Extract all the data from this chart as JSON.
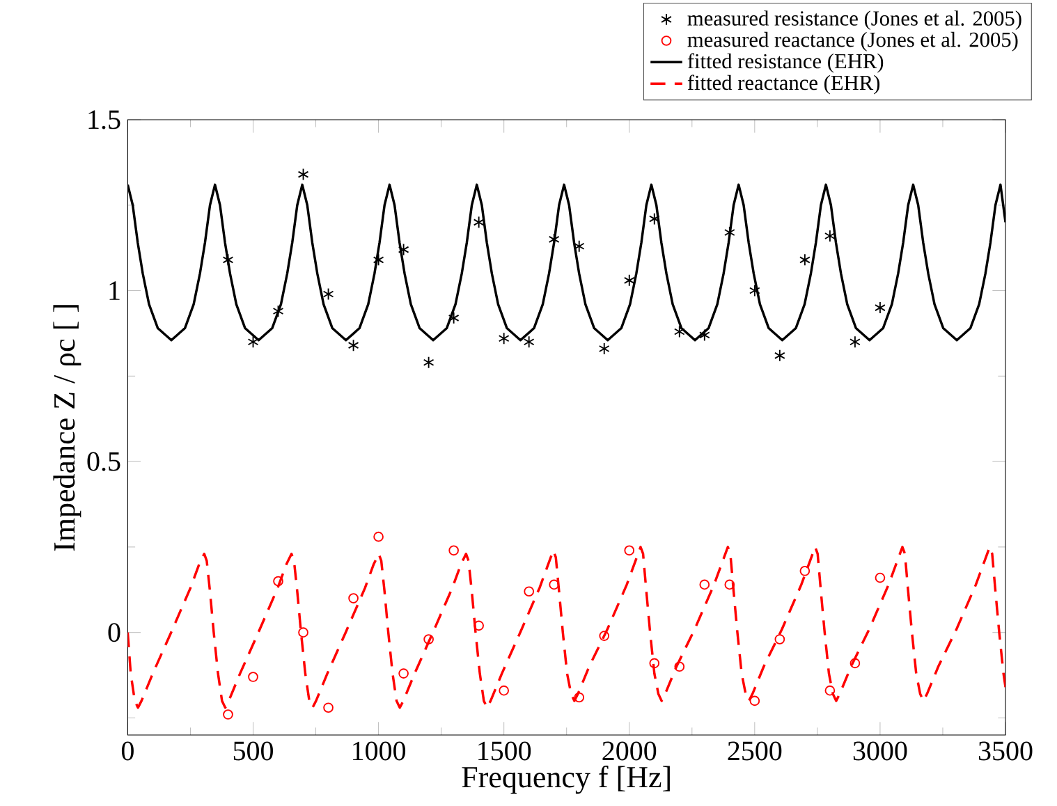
{
  "chart_data": {
    "type": "line",
    "xlabel": "Frequency f [Hz]",
    "ylabel": "Impedance Z / ρc [ ]",
    "xlim": [
      0,
      3500
    ],
    "ylim": [
      -0.3,
      1.5
    ],
    "xticks": [
      0,
      {
        "value": 250,
        "label": null
      },
      500,
      {
        "value": 750,
        "label": null
      },
      1000,
      {
        "value": 1250,
        "label": null
      },
      1500,
      {
        "value": 1750,
        "label": null
      },
      2000,
      {
        "value": 2250,
        "label": null
      },
      2500,
      {
        "value": 2750,
        "label": null
      },
      3000,
      {
        "value": 3250,
        "label": null
      },
      3500
    ],
    "yticks": [
      {
        "value": -0.25,
        "label": null
      },
      0,
      {
        "value": 0.25,
        "label": null
      },
      0.5,
      {
        "value": 0.75,
        "label": null
      },
      1,
      {
        "value": 1.25,
        "label": null
      },
      1.5
    ],
    "grid": false,
    "legend": "top right",
    "series": [
      {
        "name": "measured resistance (Jones et al. 2005)",
        "type": "scatter",
        "color": "#000000",
        "x": [
          400,
          500,
          600,
          700,
          800,
          900,
          1000,
          1100,
          1200,
          1300,
          1400,
          1500,
          1600,
          1700,
          1800,
          1900,
          2000,
          2100,
          2200,
          2300,
          2400,
          2500,
          2600,
          2700,
          2800,
          2900,
          3000
        ],
        "values": [
          1.09,
          0.85,
          0.94,
          1.34,
          0.99,
          0.84,
          1.09,
          1.12,
          0.79,
          0.92,
          1.2,
          0.86,
          0.85,
          1.15,
          1.13,
          0.83,
          1.03,
          1.21,
          0.88,
          0.87,
          1.17,
          1.0,
          0.81,
          1.09,
          1.16,
          0.85,
          0.95
        ]
      },
      {
        "name": "measured reactance (Jones et al. 2005)",
        "type": "scatter",
        "marker": "circle",
        "color": "#ff0000",
        "x": [
          400,
          500,
          600,
          700,
          800,
          900,
          1000,
          1100,
          1200,
          1300,
          1400,
          1500,
          1600,
          1700,
          1800,
          1900,
          2000,
          2100,
          2200,
          2300,
          2400,
          2500,
          2600,
          2700,
          2800,
          2900,
          3000
        ],
        "values": [
          -0.24,
          -0.13,
          0.15,
          0.0,
          -0.22,
          0.1,
          0.28,
          -0.12,
          -0.02,
          0.24,
          0.02,
          -0.17,
          0.12,
          0.14,
          -0.19,
          -0.01,
          0.24,
          -0.09,
          -0.1,
          0.14,
          0.14,
          -0.2,
          -0.02,
          0.18,
          -0.17,
          -0.09,
          0.16
        ]
      },
      {
        "name": "fitted resistance (EHR)",
        "marker": "none",
        "line_style": "solid",
        "color": "#000000",
        "x": [
          0,
          20,
          40,
          60,
          85,
          120,
          174,
          228,
          263,
          288,
          308,
          328,
          348,
          368,
          388,
          408,
          433,
          468,
          522,
          576,
          611,
          636,
          656,
          676,
          696,
          716,
          736,
          756,
          781,
          816,
          870,
          924,
          959,
          984,
          1004,
          1024,
          1044,
          1064,
          1084,
          1104,
          1129,
          1164,
          1218,
          1272,
          1307,
          1332,
          1352,
          1372,
          1392,
          1412,
          1432,
          1452,
          1477,
          1512,
          1566,
          1620,
          1655,
          1680,
          1700,
          1720,
          1740,
          1760,
          1780,
          1800,
          1825,
          1860,
          1914,
          1968,
          2003,
          2028,
          2048,
          2068,
          2088,
          2108,
          2128,
          2148,
          2173,
          2208,
          2262,
          2316,
          2351,
          2376,
          2396,
          2416,
          2436,
          2456,
          2476,
          2496,
          2521,
          2556,
          2610,
          2664,
          2699,
          2724,
          2744,
          2764,
          2784,
          2804,
          2824,
          2844,
          2869,
          2904,
          2958,
          3012,
          3047,
          3072,
          3092,
          3112,
          3132,
          3152,
          3172,
          3192,
          3217,
          3252,
          3306,
          3360,
          3395,
          3420,
          3440,
          3460,
          3480,
          3500
        ],
        "values": [
          1.31,
          1.25,
          1.14,
          1.05,
          0.96,
          0.89,
          0.855,
          0.89,
          0.96,
          1.05,
          1.14,
          1.25,
          1.31,
          1.25,
          1.14,
          1.05,
          0.96,
          0.89,
          0.855,
          0.89,
          0.96,
          1.05,
          1.14,
          1.25,
          1.31,
          1.25,
          1.14,
          1.05,
          0.96,
          0.89,
          0.855,
          0.89,
          0.96,
          1.05,
          1.14,
          1.25,
          1.31,
          1.25,
          1.14,
          1.05,
          0.96,
          0.89,
          0.855,
          0.89,
          0.96,
          1.05,
          1.14,
          1.25,
          1.31,
          1.25,
          1.14,
          1.05,
          0.96,
          0.89,
          0.855,
          0.89,
          0.96,
          1.05,
          1.14,
          1.25,
          1.31,
          1.25,
          1.14,
          1.05,
          0.96,
          0.89,
          0.855,
          0.89,
          0.96,
          1.05,
          1.14,
          1.25,
          1.31,
          1.25,
          1.14,
          1.05,
          0.96,
          0.89,
          0.855,
          0.89,
          0.96,
          1.05,
          1.14,
          1.25,
          1.31,
          1.25,
          1.14,
          1.05,
          0.96,
          0.89,
          0.855,
          0.89,
          0.96,
          1.05,
          1.14,
          1.25,
          1.31,
          1.25,
          1.14,
          1.05,
          0.96,
          0.89,
          0.855,
          0.89,
          0.96,
          1.05,
          1.14,
          1.25,
          1.31,
          1.25,
          1.14,
          1.05,
          0.96,
          0.89,
          0.855,
          0.89,
          0.96,
          1.05,
          1.14,
          1.25,
          1.31,
          1.2
        ]
      },
      {
        "name": "fitted reactance (EHR)",
        "marker": "none",
        "line_style": "dashed",
        "color": "#ff0000",
        "x": [
          0,
          12,
          28,
          41,
          55,
          100,
          173,
          250,
          285,
          305,
          315,
          328,
          343,
          360,
          376,
          389,
          403,
          448,
          521,
          598,
          633,
          653,
          663,
          676,
          691,
          708,
          724,
          737,
          751,
          796,
          869,
          946,
          981,
          1001,
          1011,
          1024,
          1039,
          1056,
          1072,
          1085,
          1099,
          1144,
          1217,
          1294,
          1329,
          1349,
          1359,
          1372,
          1387,
          1404,
          1420,
          1433,
          1447,
          1492,
          1565,
          1642,
          1677,
          1697,
          1707,
          1720,
          1735,
          1752,
          1768,
          1781,
          1795,
          1840,
          1913,
          1990,
          2025,
          2045,
          2055,
          2068,
          2083,
          2100,
          2116,
          2129,
          2143,
          2188,
          2261,
          2338,
          2373,
          2393,
          2403,
          2416,
          2431,
          2448,
          2464,
          2477,
          2491,
          2536,
          2609,
          2686,
          2721,
          2741,
          2751,
          2764,
          2779,
          2796,
          2812,
          2825,
          2839,
          2884,
          2957,
          3034,
          3069,
          3089,
          3099,
          3112,
          3127,
          3144,
          3160,
          3173,
          3187,
          3232,
          3305,
          3382,
          3417,
          3437,
          3447,
          3460,
          3475,
          3492,
          3500
        ],
        "values": [
          0,
          -0.12,
          -0.2,
          -0.22,
          -0.2,
          -0.12,
          0,
          0.13,
          0.2,
          0.23,
          0.21,
          0.12,
          0,
          -0.12,
          -0.2,
          -0.22,
          -0.2,
          -0.12,
          0,
          0.13,
          0.2,
          0.23,
          0.21,
          0.12,
          0,
          -0.12,
          -0.2,
          -0.22,
          -0.2,
          -0.12,
          0,
          0.13,
          0.2,
          0.23,
          0.21,
          0.12,
          0,
          -0.12,
          -0.2,
          -0.22,
          -0.2,
          -0.12,
          0,
          0.13,
          0.2,
          0.23,
          0.21,
          0.12,
          0,
          -0.12,
          -0.2,
          -0.22,
          -0.2,
          -0.12,
          0,
          0.13,
          0.2,
          0.24,
          0.22,
          0.12,
          0,
          -0.12,
          -0.18,
          -0.2,
          -0.18,
          -0.1,
          0.01,
          0.14,
          0.21,
          0.25,
          0.23,
          0.12,
          0,
          -0.12,
          -0.18,
          -0.2,
          -0.18,
          -0.1,
          0.01,
          0.14,
          0.21,
          0.25,
          0.23,
          0.12,
          0,
          -0.12,
          -0.18,
          -0.2,
          -0.18,
          -0.1,
          0.01,
          0.14,
          0.21,
          0.25,
          0.23,
          0.12,
          0,
          -0.12,
          -0.18,
          -0.2,
          -0.18,
          -0.1,
          0.01,
          0.14,
          0.21,
          0.25,
          0.23,
          0.12,
          0,
          -0.12,
          -0.18,
          -0.2,
          -0.18,
          -0.1,
          0.01,
          0.14,
          0.21,
          0.25,
          0.23,
          0.12,
          0,
          -0.12,
          -0.16
        ]
      }
    ]
  }
}
